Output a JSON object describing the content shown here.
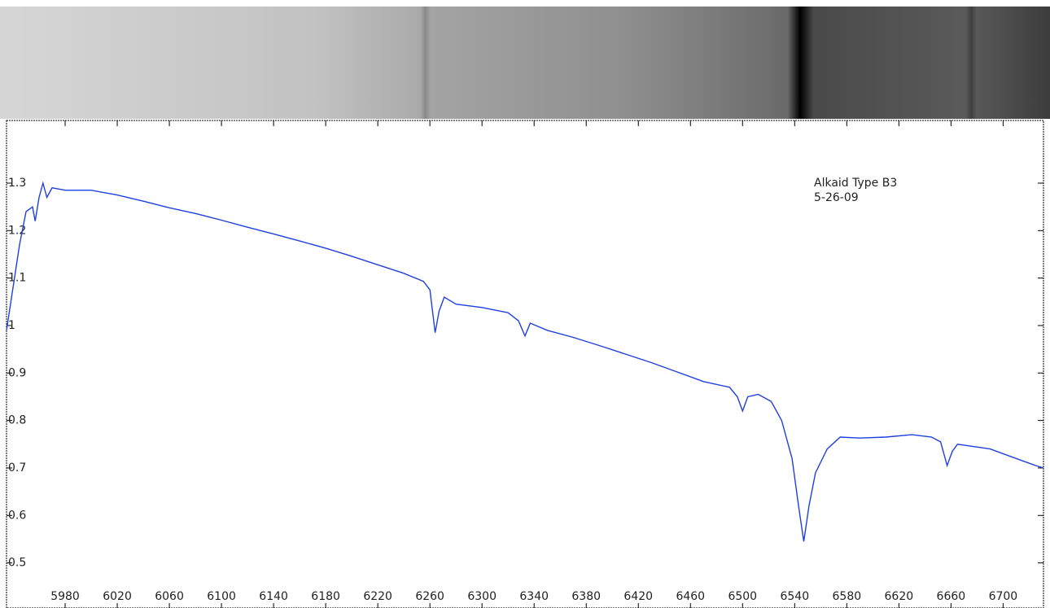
{
  "chart_data": {
    "type": "line",
    "annotations": [
      "Alkaid  Type B3",
      "5-26-09"
    ],
    "x": [
      5935,
      5940,
      5945,
      5950,
      5955,
      5957,
      5960,
      5963,
      5966,
      5970,
      5980,
      6000,
      6020,
      6040,
      6060,
      6080,
      6100,
      6120,
      6140,
      6160,
      6180,
      6200,
      6220,
      6240,
      6255,
      6260,
      6264,
      6267,
      6271,
      6280,
      6300,
      6320,
      6328,
      6333,
      6337,
      6350,
      6370,
      6390,
      6410,
      6430,
      6450,
      6470,
      6490,
      6496,
      6500,
      6504,
      6512,
      6522,
      6530,
      6538,
      6543,
      6547,
      6551,
      6556,
      6565,
      6575,
      6590,
      6610,
      6630,
      6645,
      6652,
      6657,
      6661,
      6665,
      6670,
      6690,
      6710,
      6725,
      6731
    ],
    "series": [
      {
        "color": "#1f3fe0",
        "values": [
          0.99,
          1.08,
          1.17,
          1.24,
          1.25,
          1.22,
          1.27,
          1.3,
          1.27,
          1.29,
          1.285,
          1.285,
          1.275,
          1.262,
          1.248,
          1.236,
          1.222,
          1.207,
          1.193,
          1.178,
          1.163,
          1.146,
          1.128,
          1.11,
          1.093,
          1.075,
          0.985,
          1.03,
          1.06,
          1.045,
          1.038,
          1.027,
          1.01,
          0.978,
          1.005,
          0.99,
          0.975,
          0.958,
          0.94,
          0.922,
          0.902,
          0.882,
          0.87,
          0.85,
          0.82,
          0.85,
          0.855,
          0.84,
          0.8,
          0.72,
          0.62,
          0.545,
          0.62,
          0.69,
          0.74,
          0.765,
          0.763,
          0.765,
          0.77,
          0.765,
          0.755,
          0.705,
          0.735,
          0.75,
          0.748,
          0.74,
          0.72,
          0.705,
          0.7
        ]
      }
    ],
    "xlim": [
      5935,
      6731
    ],
    "xticks": [
      5980,
      6020,
      6060,
      6100,
      6140,
      6180,
      6220,
      6260,
      6300,
      6340,
      6380,
      6420,
      6460,
      6500,
      6540,
      6580,
      6620,
      6660,
      6700
    ],
    "ylim": [
      0.405,
      1.432
    ],
    "yticks": [
      0.5,
      0.6,
      0.7,
      0.8,
      0.9,
      1,
      1.1,
      1.2,
      1.3
    ]
  }
}
